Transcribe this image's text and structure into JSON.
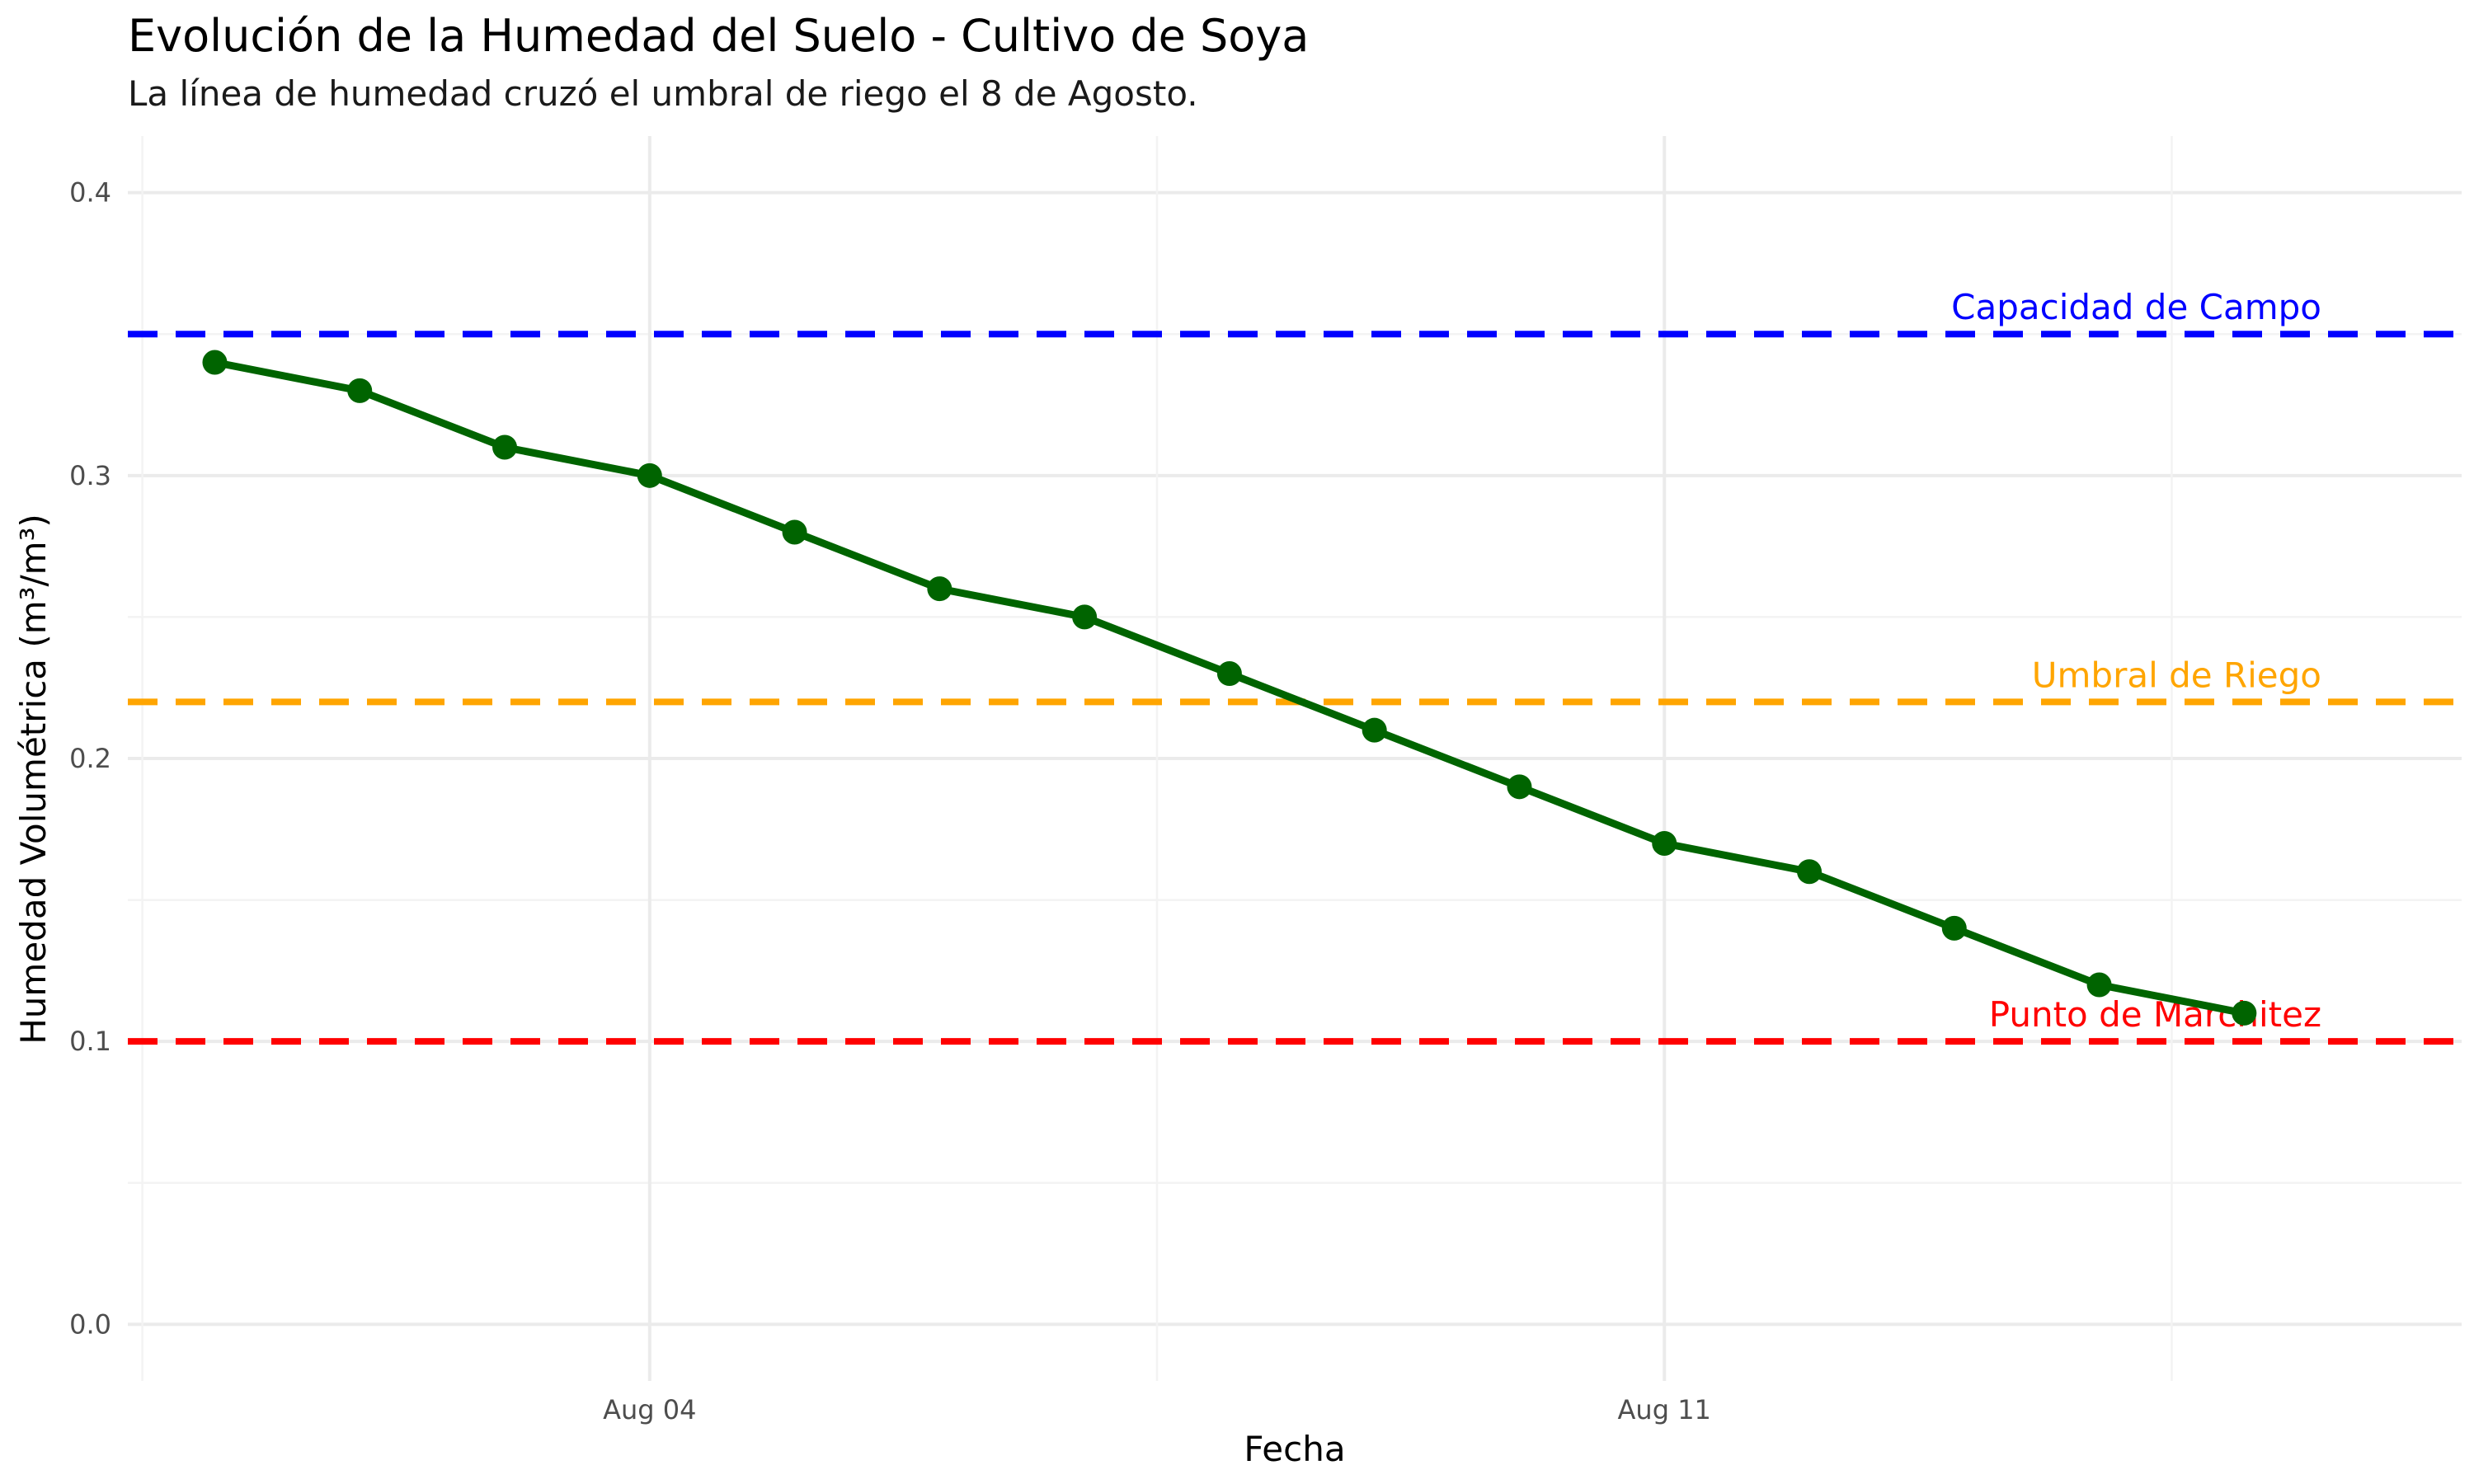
{
  "chart_data": {
    "type": "line",
    "title": "Evolución de la Humedad del Suelo - Cultivo de Soya",
    "subtitle": "La línea de humedad cruzó el umbral de riego el 8 de Agosto.",
    "xlabel": "Fecha",
    "ylabel": "Humedad Volumétrica (m³/m³)",
    "x_start": "2024-08-01",
    "x": [
      "Aug 01",
      "Aug 02",
      "Aug 03",
      "Aug 04",
      "Aug 05",
      "Aug 06",
      "Aug 07",
      "Aug 08",
      "Aug 09",
      "Aug 10",
      "Aug 11",
      "Aug 12",
      "Aug 13",
      "Aug 14",
      "Aug 15"
    ],
    "values": [
      0.34,
      0.33,
      0.31,
      0.3,
      0.28,
      0.26,
      0.25,
      0.23,
      0.21,
      0.19,
      0.17,
      0.16,
      0.14,
      0.12,
      0.11
    ],
    "ylim": [
      0.0,
      0.4
    ],
    "yticks": [
      {
        "value": 0.0,
        "label": "0.0"
      },
      {
        "value": 0.1,
        "label": "0.1"
      },
      {
        "value": 0.2,
        "label": "0.2"
      },
      {
        "value": 0.3,
        "label": "0.3"
      },
      {
        "value": 0.4,
        "label": "0.4"
      }
    ],
    "xticks": [
      {
        "day": 4,
        "label": "Aug 04"
      },
      {
        "day": 11,
        "label": "Aug 11"
      }
    ],
    "line_color": "#006400",
    "reference_lines": [
      {
        "name": "Capacidad de Campo",
        "value": 0.35,
        "color": "#0000FF"
      },
      {
        "name": "Umbral de Riego",
        "value": 0.22,
        "color": "#FFA500"
      },
      {
        "name": "Punto de Marchitez",
        "value": 0.1,
        "color": "#FF0000"
      }
    ],
    "grid": true,
    "legend": "none"
  }
}
